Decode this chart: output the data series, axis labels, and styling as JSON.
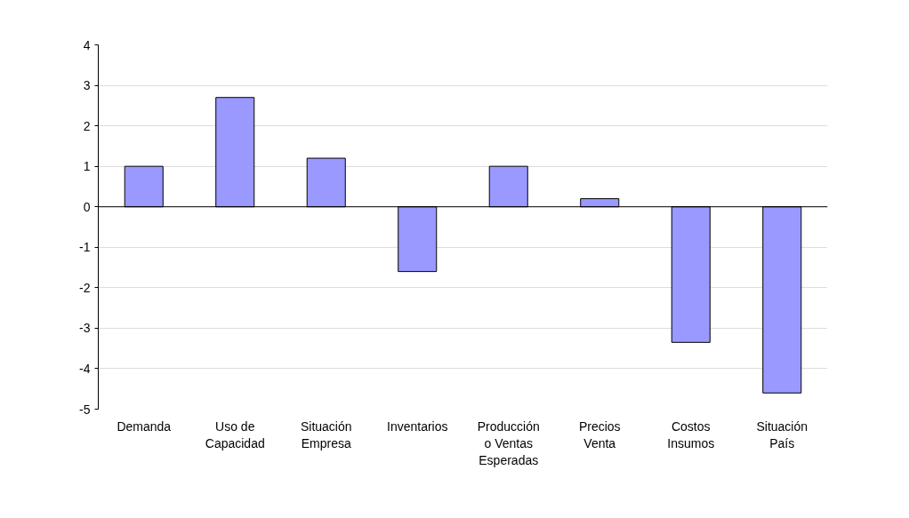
{
  "chart_data": {
    "type": "bar",
    "categories": [
      "Demanda",
      "Uso de Capacidad",
      "Situación Empresa",
      "Inventarios",
      "Producción o Ventas Esperadas",
      "Precios Venta",
      "Costos Insumos",
      "Situación País"
    ],
    "values": [
      1.0,
      2.7,
      1.2,
      -1.6,
      1.0,
      0.2,
      -3.35,
      -4.6
    ],
    "color": "#9999ff",
    "ylim": [
      -5,
      4
    ],
    "yticks": [
      -5,
      -4,
      -3,
      -2,
      -1,
      0,
      1,
      2,
      3,
      4
    ],
    "grid": "y"
  }
}
